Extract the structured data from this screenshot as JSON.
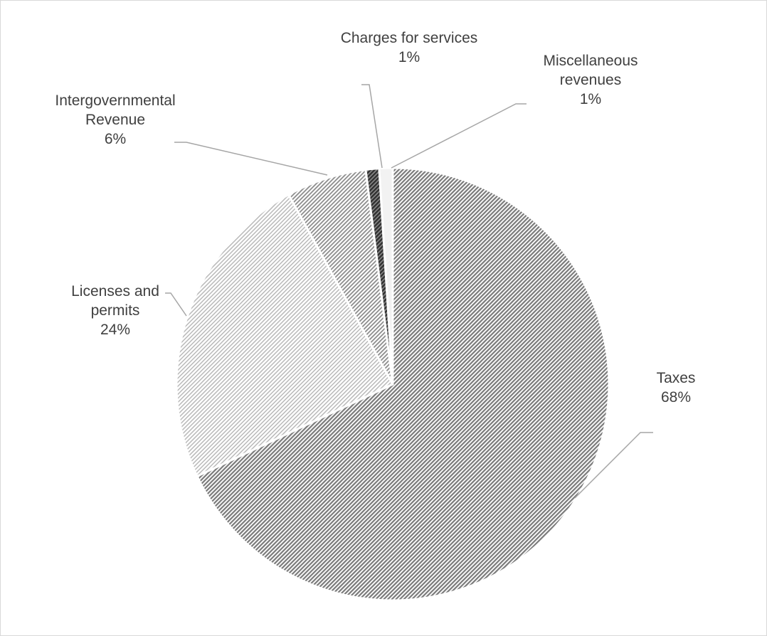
{
  "chart_data": {
    "type": "pie",
    "title": "",
    "start_angle_deg": 0,
    "direction": "clockwise",
    "slices": [
      {
        "name": "Taxes",
        "label_lines": [
          "Taxes"
        ],
        "value": 68,
        "pct_label": "68%",
        "color": "#a0a0a0",
        "pattern": "dense-diagonal"
      },
      {
        "name": "Licenses and permits",
        "label_lines": [
          "Licenses and",
          "permits"
        ],
        "value": 24,
        "pct_label": "24%",
        "color": "#d0d0d0",
        "pattern": "light-diagonal"
      },
      {
        "name": "Intergovernmental Revenue",
        "label_lines": [
          "Intergovernmental",
          "Revenue"
        ],
        "value": 6,
        "pct_label": "6%",
        "color": "#b4b4b4",
        "pattern": "medium-diagonal"
      },
      {
        "name": "Charges for services",
        "label_lines": [
          "Charges for services"
        ],
        "value": 1,
        "pct_label": "1%",
        "color": "#6a6a6a",
        "pattern": "dark-diagonal"
      },
      {
        "name": "Miscellaneous revenues",
        "label_lines": [
          "Miscellaneous",
          "revenues"
        ],
        "value": 1,
        "pct_label": "1%",
        "color": "#f2f2f2",
        "pattern": "none"
      }
    ],
    "legend": "none",
    "data_labels": "outside-with-leader-lines"
  }
}
